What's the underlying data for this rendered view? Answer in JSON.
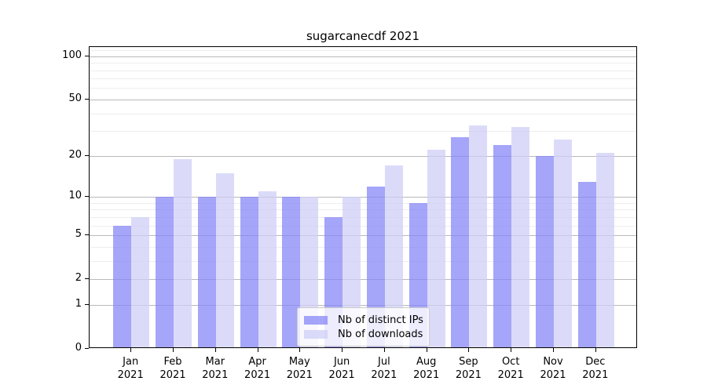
{
  "title": "sugarcanecdf 2021",
  "chart_data": {
    "type": "bar",
    "title": "sugarcanecdf 2021",
    "xlabel": "",
    "ylabel": "",
    "yscale": "log1p",
    "ymax": 115.6,
    "ymin": 0,
    "grid": true,
    "yticks": [
      0,
      1,
      2,
      5,
      10,
      20,
      50,
      100
    ],
    "minor_gridlines": [
      3,
      4,
      6,
      7,
      8,
      9,
      30,
      40,
      60,
      70,
      80,
      90,
      110
    ],
    "x_tick_labels": [
      "Jan\n2021",
      "Feb\n2021",
      "Mar\n2021",
      "Apr\n2021",
      "May\n2021",
      "Jun\n2021",
      "Jul\n2021",
      "Aug\n2021",
      "Sep\n2021",
      "Oct\n2021",
      "Nov\n2021",
      "Dec\n2021"
    ],
    "series": [
      {
        "name": "Nb of distinct IPs",
        "color_hex": "#8282f6",
        "alpha": 0.72,
        "values": [
          6,
          10,
          10,
          10,
          10,
          7,
          12,
          9,
          27,
          24,
          20,
          13
        ]
      },
      {
        "name": "Nb of downloads",
        "color_hex": "#cdcdf7",
        "alpha": 0.72,
        "values": [
          7,
          19,
          15,
          11,
          10,
          10,
          17,
          22,
          33,
          32,
          26,
          21
        ]
      }
    ],
    "legend": {
      "position": "lower center",
      "entries": [
        "Nb of distinct IPs",
        "Nb of downloads"
      ]
    },
    "colors": {
      "background": "#ffffff",
      "axis": "#000000",
      "major_grid": "#b9b9b9",
      "minor_grid": "#ededed",
      "legend_border": "#cccccc"
    }
  }
}
